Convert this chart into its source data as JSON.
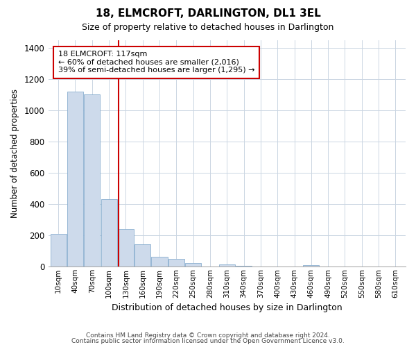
{
  "title": "18, ELMCROFT, DARLINGTON, DL1 3EL",
  "subtitle": "Size of property relative to detached houses in Darlington",
  "xlabel": "Distribution of detached houses by size in Darlington",
  "ylabel": "Number of detached properties",
  "bar_color": "#cddaeb",
  "bar_edge_color": "#8aafd0",
  "background_color": "#ffffff",
  "grid_color": "#cad5e2",
  "ylim": [
    0,
    1450
  ],
  "yticks": [
    0,
    200,
    400,
    600,
    800,
    1000,
    1200,
    1400
  ],
  "bin_labels": [
    "10sqm",
    "40sqm",
    "70sqm",
    "100sqm",
    "130sqm",
    "160sqm",
    "190sqm",
    "220sqm",
    "250sqm",
    "280sqm",
    "310sqm",
    "340sqm",
    "370sqm",
    "400sqm",
    "430sqm",
    "460sqm",
    "490sqm",
    "520sqm",
    "550sqm",
    "580sqm",
    "610sqm"
  ],
  "bar_values": [
    210,
    1120,
    1100,
    430,
    240,
    140,
    60,
    47,
    20,
    0,
    15,
    5,
    0,
    0,
    0,
    8,
    0,
    0,
    0,
    0,
    0
  ],
  "annotation_line1": "18 ELMCROFT: 117sqm",
  "annotation_line2": "← 60% of detached houses are smaller (2,016)",
  "annotation_line3": "39% of semi-detached houses are larger (1,295) →",
  "annotation_box_color": "#ffffff",
  "annotation_box_edge_color": "#cc0000",
  "property_bar_index": 3,
  "marker_line_color": "#cc0000",
  "footer_line1": "Contains HM Land Registry data © Crown copyright and database right 2024.",
  "footer_line2": "Contains public sector information licensed under the Open Government Licence v3.0."
}
